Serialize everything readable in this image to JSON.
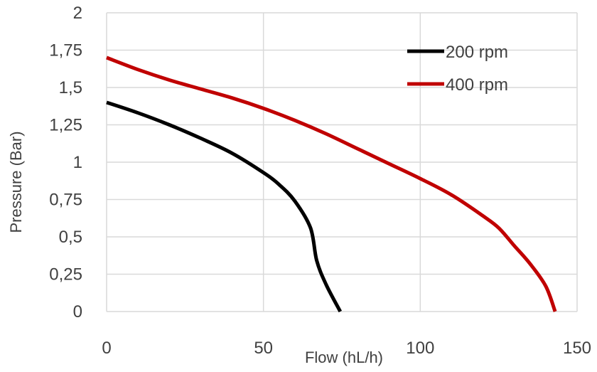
{
  "chart_data": {
    "type": "line",
    "title": "",
    "xlabel": "Flow (hL/h)",
    "ylabel": "Pressure (Bar)",
    "xlim": [
      0,
      150
    ],
    "ylim": [
      0,
      2
    ],
    "x_ticks": [
      "0",
      "50",
      "100",
      "150"
    ],
    "y_ticks": [
      "0",
      "0,25",
      "0,5",
      "0,75",
      "1",
      "1,25",
      "1,5",
      "1,75",
      "2"
    ],
    "grid": true,
    "legend_position": "top-right",
    "series": [
      {
        "name": "200 rpm",
        "color": "#000000",
        "points": [
          [
            0,
            1.4
          ],
          [
            10,
            1.33
          ],
          [
            20,
            1.25
          ],
          [
            30,
            1.16
          ],
          [
            40,
            1.06
          ],
          [
            50,
            0.93
          ],
          [
            55,
            0.85
          ],
          [
            60,
            0.74
          ],
          [
            65,
            0.56
          ],
          [
            67,
            0.34
          ],
          [
            70,
            0.18
          ],
          [
            74.5,
            0
          ]
        ]
      },
      {
        "name": "400 rpm",
        "color": "#c00000",
        "points": [
          [
            0,
            1.7
          ],
          [
            10,
            1.62
          ],
          [
            20,
            1.55
          ],
          [
            30,
            1.49
          ],
          [
            40,
            1.43
          ],
          [
            50,
            1.36
          ],
          [
            60,
            1.28
          ],
          [
            70,
            1.19
          ],
          [
            80,
            1.09
          ],
          [
            90,
            0.99
          ],
          [
            100,
            0.89
          ],
          [
            110,
            0.78
          ],
          [
            120,
            0.64
          ],
          [
            125,
            0.56
          ],
          [
            130,
            0.44
          ],
          [
            135,
            0.32
          ],
          [
            140,
            0.17
          ],
          [
            143,
            0
          ]
        ]
      }
    ]
  }
}
